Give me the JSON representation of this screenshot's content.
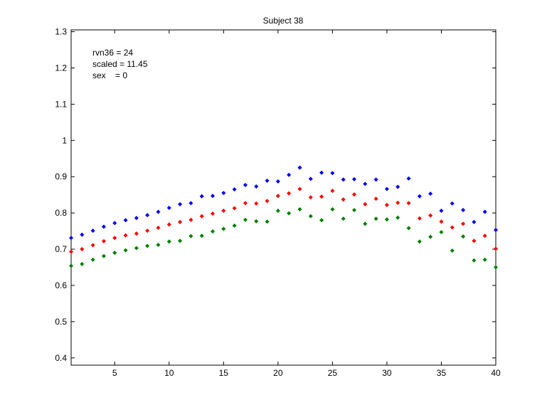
{
  "chart_data": {
    "type": "scatter",
    "title": "Subject 38",
    "xlabel": "",
    "ylabel": "",
    "xlim": [
      1,
      40
    ],
    "ylim": [
      0.38,
      1.305
    ],
    "xticks": [
      5,
      10,
      15,
      20,
      25,
      30,
      35,
      40
    ],
    "yticks": [
      0.4,
      0.5,
      0.6,
      0.7,
      0.8,
      0.9,
      1.0,
      1.1,
      1.2,
      1.3
    ],
    "ytick_labels": [
      "0.4",
      "0.5",
      "0.6",
      "0.7",
      "0.8",
      "0.9",
      "1",
      "1.1",
      "1.2",
      "1.3"
    ],
    "grid": false,
    "annotations": [
      "rvn36 = 24",
      "scaled = 11.45",
      "sex    = 0"
    ],
    "x": [
      1,
      2,
      3,
      4,
      5,
      6,
      7,
      8,
      9,
      10,
      11,
      12,
      13,
      14,
      15,
      16,
      17,
      18,
      19,
      20,
      21,
      22,
      23,
      24,
      25,
      26,
      27,
      28,
      29,
      30,
      31,
      32,
      33,
      34,
      35,
      36,
      37,
      38,
      39,
      40
    ],
    "series": [
      {
        "color": "#0000ff",
        "marker": "diamond",
        "values": [
          0.731,
          0.74,
          0.751,
          0.762,
          0.772,
          0.78,
          0.786,
          0.794,
          0.803,
          0.814,
          0.824,
          0.827,
          0.846,
          0.847,
          0.855,
          0.865,
          0.877,
          0.873,
          0.889,
          0.887,
          0.905,
          0.925,
          0.894,
          0.911,
          0.91,
          0.892,
          0.893,
          0.88,
          0.892,
          0.866,
          0.872,
          0.895,
          0.846,
          0.853,
          0.806,
          0.826,
          0.808,
          0.775,
          0.803,
          0.753
        ]
      },
      {
        "color": "#ff0000",
        "marker": "diamond",
        "values": [
          0.693,
          0.7,
          0.711,
          0.722,
          0.731,
          0.738,
          0.743,
          0.751,
          0.759,
          0.768,
          0.775,
          0.781,
          0.791,
          0.798,
          0.806,
          0.813,
          0.827,
          0.826,
          0.833,
          0.847,
          0.854,
          0.866,
          0.843,
          0.845,
          0.861,
          0.837,
          0.851,
          0.824,
          0.839,
          0.822,
          0.828,
          0.827,
          0.785,
          0.793,
          0.776,
          0.76,
          0.77,
          0.723,
          0.737,
          0.701
        ]
      },
      {
        "color": "#008000",
        "marker": "diamond",
        "values": [
          0.654,
          0.659,
          0.671,
          0.681,
          0.69,
          0.697,
          0.703,
          0.709,
          0.712,
          0.721,
          0.723,
          0.736,
          0.737,
          0.749,
          0.756,
          0.765,
          0.781,
          0.777,
          0.776,
          0.806,
          0.799,
          0.81,
          0.791,
          0.78,
          0.81,
          0.784,
          0.808,
          0.77,
          0.784,
          0.782,
          0.787,
          0.758,
          0.721,
          0.734,
          0.747,
          0.696,
          0.735,
          0.669,
          0.671,
          0.65
        ]
      }
    ]
  }
}
